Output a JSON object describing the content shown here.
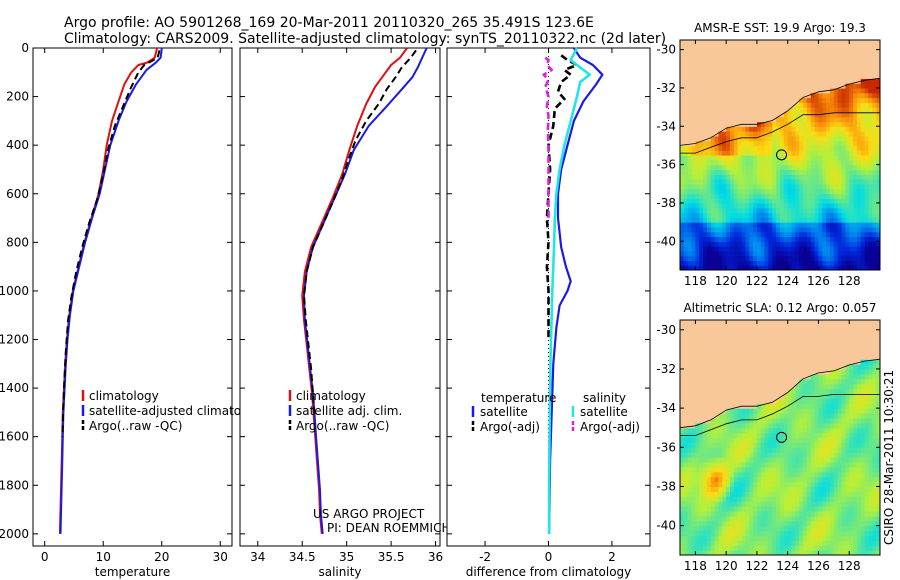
{
  "header": {
    "line1": "Argo profile: AO 5901268_169 20-Mar-2011 20110320_265 35.491S 123.6E",
    "line2": "Climatology: CARS2009. Satellite-adjusted climatology: synTS_20110322.nc (2d later)"
  },
  "colors": {
    "climatology": "#dd1111",
    "satellite": "#1a1ae6",
    "argo": "#000000",
    "sat_salinity": "#22e5e5",
    "argo_salinity": "#dd22dd",
    "land": "#f8c89a"
  },
  "chart_data": [
    {
      "type": "line",
      "id": "temperature",
      "xlabel": "temperature",
      "ylabel": "",
      "xlim": [
        -2,
        32
      ],
      "ylim": [
        2050,
        0
      ],
      "x_ticks": [
        0,
        10,
        20,
        30
      ],
      "y_ticks": [
        0,
        200,
        400,
        600,
        800,
        1000,
        1200,
        1400,
        1600,
        1800,
        2000
      ],
      "legend": [
        "climatology",
        "satellite-adjusted climatology",
        "Argo(..raw -QC)"
      ],
      "legend_position": "lower-right",
      "series": [
        {
          "name": "climatology",
          "points": [
            [
              19.2,
              0
            ],
            [
              18.8,
              40
            ],
            [
              17.5,
              60
            ],
            [
              16.0,
              70
            ],
            [
              14.8,
              100
            ],
            [
              13.6,
              150
            ],
            [
              12.6,
              220
            ],
            [
              11.5,
              300
            ],
            [
              10.6,
              400
            ],
            [
              10.0,
              500
            ],
            [
              9.2,
              600
            ],
            [
              8.0,
              700
            ],
            [
              6.8,
              800
            ],
            [
              5.8,
              900
            ],
            [
              4.8,
              1000
            ],
            [
              4.2,
              1100
            ],
            [
              3.8,
              1200
            ],
            [
              3.5,
              1300
            ],
            [
              3.3,
              1400
            ],
            [
              3.1,
              1500
            ],
            [
              3.0,
              1600
            ],
            [
              2.9,
              1700
            ],
            [
              2.8,
              1800
            ],
            [
              2.7,
              1900
            ],
            [
              2.6,
              2000
            ]
          ]
        },
        {
          "name": "satellite-adjusted climatology",
          "points": [
            [
              20.0,
              0
            ],
            [
              19.8,
              40
            ],
            [
              19.0,
              60
            ],
            [
              17.4,
              90
            ],
            [
              15.6,
              150
            ],
            [
              14.0,
              220
            ],
            [
              12.6,
              300
            ],
            [
              11.2,
              400
            ],
            [
              10.3,
              500
            ],
            [
              9.4,
              600
            ],
            [
              8.1,
              700
            ],
            [
              6.9,
              800
            ],
            [
              5.9,
              900
            ],
            [
              4.9,
              1000
            ],
            [
              4.3,
              1100
            ],
            [
              3.9,
              1200
            ],
            [
              3.6,
              1300
            ],
            [
              3.4,
              1400
            ],
            [
              3.2,
              1500
            ],
            [
              3.1,
              1600
            ],
            [
              3.0,
              1700
            ],
            [
              2.9,
              1800
            ],
            [
              2.8,
              1900
            ],
            [
              2.7,
              2000
            ]
          ]
        },
        {
          "name": "Argo(..raw -QC)",
          "points": [
            [
              19.6,
              10
            ],
            [
              19.3,
              40
            ],
            [
              18.2,
              55
            ],
            [
              17.0,
              70
            ],
            [
              16.0,
              100
            ],
            [
              14.8,
              160
            ],
            [
              13.4,
              240
            ],
            [
              12.0,
              320
            ],
            [
              10.8,
              420
            ],
            [
              10.0,
              520
            ],
            [
              9.0,
              620
            ],
            [
              7.6,
              720
            ],
            [
              6.4,
              820
            ],
            [
              5.4,
              920
            ],
            [
              4.6,
              1020
            ],
            [
              4.0,
              1120
            ],
            [
              3.6,
              1250
            ],
            [
              3.3,
              1400
            ],
            [
              3.0,
              1600
            ]
          ]
        }
      ]
    },
    {
      "type": "line",
      "id": "salinity",
      "xlabel": "salinity",
      "ylabel": "",
      "xlim": [
        33.8,
        36.05
      ],
      "ylim": [
        2050,
        0
      ],
      "x_ticks": [
        34,
        34.5,
        35,
        35.5,
        36
      ],
      "x_tick_labels": [
        "34",
        "34.5",
        "35",
        "35.5",
        "36"
      ],
      "legend": [
        "climatology",
        "satellite adj. clim.",
        "Argo(..raw -QC)"
      ],
      "legend_position": "lower-right",
      "annotation": [
        "US ARGO PROJECT",
        "PI: DEAN ROEMMICH"
      ],
      "series": [
        {
          "name": "climatology",
          "points": [
            [
              35.68,
              0
            ],
            [
              35.6,
              40
            ],
            [
              35.5,
              70
            ],
            [
              35.42,
              110
            ],
            [
              35.32,
              160
            ],
            [
              35.22,
              230
            ],
            [
              35.12,
              320
            ],
            [
              35.03,
              420
            ],
            [
              34.95,
              520
            ],
            [
              34.84,
              620
            ],
            [
              34.72,
              720
            ],
            [
              34.6,
              820
            ],
            [
              34.53,
              920
            ],
            [
              34.5,
              1020
            ],
            [
              34.52,
              1120
            ],
            [
              34.55,
              1220
            ],
            [
              34.58,
              1320
            ],
            [
              34.61,
              1420
            ],
            [
              34.63,
              1520
            ],
            [
              34.65,
              1620
            ],
            [
              34.67,
              1720
            ],
            [
              34.69,
              1820
            ],
            [
              34.7,
              1920
            ],
            [
              34.72,
              2000
            ]
          ]
        },
        {
          "name": "satellite adj. clim.",
          "points": [
            [
              35.9,
              0
            ],
            [
              35.85,
              40
            ],
            [
              35.8,
              80
            ],
            [
              35.74,
              120
            ],
            [
              35.62,
              170
            ],
            [
              35.45,
              240
            ],
            [
              35.25,
              320
            ],
            [
              35.08,
              420
            ],
            [
              34.98,
              520
            ],
            [
              34.86,
              620
            ],
            [
              34.74,
              720
            ],
            [
              34.62,
              820
            ],
            [
              34.55,
              920
            ],
            [
              34.52,
              1020
            ],
            [
              34.53,
              1120
            ],
            [
              34.56,
              1220
            ],
            [
              34.59,
              1320
            ],
            [
              34.62,
              1420
            ],
            [
              34.64,
              1520
            ],
            [
              34.66,
              1620
            ],
            [
              34.68,
              1720
            ],
            [
              34.7,
              1820
            ],
            [
              34.71,
              1920
            ],
            [
              34.73,
              2000
            ]
          ]
        },
        {
          "name": "Argo(..raw -QC)",
          "points": [
            [
              35.78,
              10
            ],
            [
              35.72,
              40
            ],
            [
              35.62,
              80
            ],
            [
              35.55,
              120
            ],
            [
              35.45,
              170
            ],
            [
              35.36,
              230
            ],
            [
              35.22,
              300
            ],
            [
              35.1,
              380
            ],
            [
              35.02,
              460
            ],
            [
              34.95,
              540
            ],
            [
              34.86,
              620
            ],
            [
              34.74,
              720
            ],
            [
              34.62,
              820
            ],
            [
              34.55,
              920
            ],
            [
              34.52,
              1020
            ],
            [
              34.54,
              1120
            ],
            [
              34.57,
              1220
            ],
            [
              34.6,
              1320
            ],
            [
              34.62,
              1420
            ],
            [
              34.64,
              1520
            ]
          ]
        }
      ]
    },
    {
      "type": "line",
      "id": "difference",
      "xlabel": "difference from climatology",
      "ylabel": "",
      "xlim": [
        -3.2,
        3.2
      ],
      "ylim": [
        2050,
        0
      ],
      "x_ticks": [
        -2,
        0,
        2
      ],
      "legend_temperature_title": "temperature",
      "legend_salinity_title": "salinity",
      "legend": [
        "satellite",
        "Argo(-adj)",
        "satellite",
        "Argo(-adj)"
      ],
      "legend_position": "lower-center",
      "series": [
        {
          "name": "temperature satellite",
          "points": [
            [
              0.8,
              0
            ],
            [
              0.9,
              20
            ],
            [
              1.0,
              40
            ],
            [
              1.4,
              70
            ],
            [
              1.7,
              110
            ],
            [
              1.5,
              150
            ],
            [
              1.1,
              220
            ],
            [
              0.8,
              300
            ],
            [
              0.6,
              400
            ],
            [
              0.4,
              500
            ],
            [
              0.3,
              600
            ],
            [
              0.3,
              700
            ],
            [
              0.4,
              820
            ],
            [
              0.55,
              900
            ],
            [
              0.7,
              960
            ],
            [
              0.6,
              1000
            ],
            [
              0.35,
              1060
            ],
            [
              0.25,
              1150
            ],
            [
              0.15,
              1300
            ],
            [
              0.1,
              1500
            ],
            [
              0.05,
              1700
            ],
            [
              0.03,
              1900
            ],
            [
              0.02,
              2000
            ]
          ]
        },
        {
          "name": "temperature Argo(-adj)",
          "points": [
            [
              0.4,
              30
            ],
            [
              0.6,
              50
            ],
            [
              0.9,
              70
            ],
            [
              0.5,
              90
            ],
            [
              0.7,
              110
            ],
            [
              0.4,
              140
            ],
            [
              0.3,
              180
            ],
            [
              0.5,
              210
            ],
            [
              0.2,
              250
            ],
            [
              0.15,
              320
            ],
            [
              0.0,
              400
            ],
            [
              0.05,
              500
            ],
            [
              0.0,
              600
            ],
            [
              -0.05,
              700
            ],
            [
              0.0,
              800
            ],
            [
              -0.05,
              900
            ],
            [
              0.0,
              1000
            ],
            [
              0.0,
              1100
            ],
            [
              0.0,
              1200
            ]
          ]
        },
        {
          "name": "salinity satellite",
          "points": [
            [
              0.9,
              0
            ],
            [
              0.7,
              50
            ],
            [
              0.9,
              70
            ],
            [
              1.3,
              110
            ],
            [
              1.0,
              140
            ],
            [
              0.9,
              200
            ],
            [
              0.7,
              300
            ],
            [
              0.5,
              400
            ],
            [
              0.35,
              500
            ],
            [
              0.25,
              600
            ],
            [
              0.2,
              700
            ],
            [
              0.18,
              800
            ],
            [
              0.15,
              900
            ],
            [
              0.12,
              1000
            ],
            [
              0.1,
              1100
            ],
            [
              0.08,
              1200
            ],
            [
              0.06,
              1300
            ],
            [
              0.05,
              1400
            ],
            [
              0.04,
              1500
            ],
            [
              0.03,
              1600
            ],
            [
              0.02,
              1800
            ],
            [
              0.02,
              2000
            ]
          ]
        },
        {
          "name": "salinity Argo(-adj)",
          "points": [
            [
              -0.1,
              40
            ],
            [
              0.0,
              50
            ],
            [
              -0.05,
              70
            ],
            [
              0.1,
              90
            ],
            [
              -0.15,
              110
            ],
            [
              0.0,
              130
            ],
            [
              -0.1,
              160
            ],
            [
              0.0,
              200
            ],
            [
              -0.05,
              240
            ],
            [
              0.0,
              280
            ],
            [
              -0.02,
              340
            ],
            [
              0.0,
              400
            ],
            [
              0.0,
              500
            ],
            [
              0.0,
              600
            ],
            [
              0.0,
              700
            ]
          ]
        }
      ]
    },
    {
      "type": "heatmap",
      "id": "sst_map",
      "title": "AMSR-E SST: 19.9 Argo: 19.3",
      "x_range": [
        117,
        130
      ],
      "y_range": [
        -41.5,
        -29.5
      ],
      "x_ticks": [
        118,
        120,
        122,
        124,
        126,
        128
      ],
      "y_ticks": [
        -30,
        -32,
        -34,
        -36,
        -38,
        -40
      ],
      "profile_marker": [
        123.6,
        -35.491
      ],
      "value_range": [
        13,
        20
      ]
    },
    {
      "type": "heatmap",
      "id": "sla_map",
      "title": "Altimetric SLA: 0.12 Argo: 0.057",
      "x_range": [
        117,
        130
      ],
      "y_range": [
        -41.5,
        -29.5
      ],
      "x_ticks": [
        118,
        120,
        122,
        124,
        126,
        128
      ],
      "y_ticks": [
        -30,
        -32,
        -34,
        -36,
        -38,
        -40
      ],
      "profile_marker": [
        123.6,
        -35.491
      ],
      "value_range": [
        -0.3,
        0.4
      ]
    }
  ],
  "footer": {
    "credit": "CSIRO 28-Mar-2011 10:30:21"
  }
}
